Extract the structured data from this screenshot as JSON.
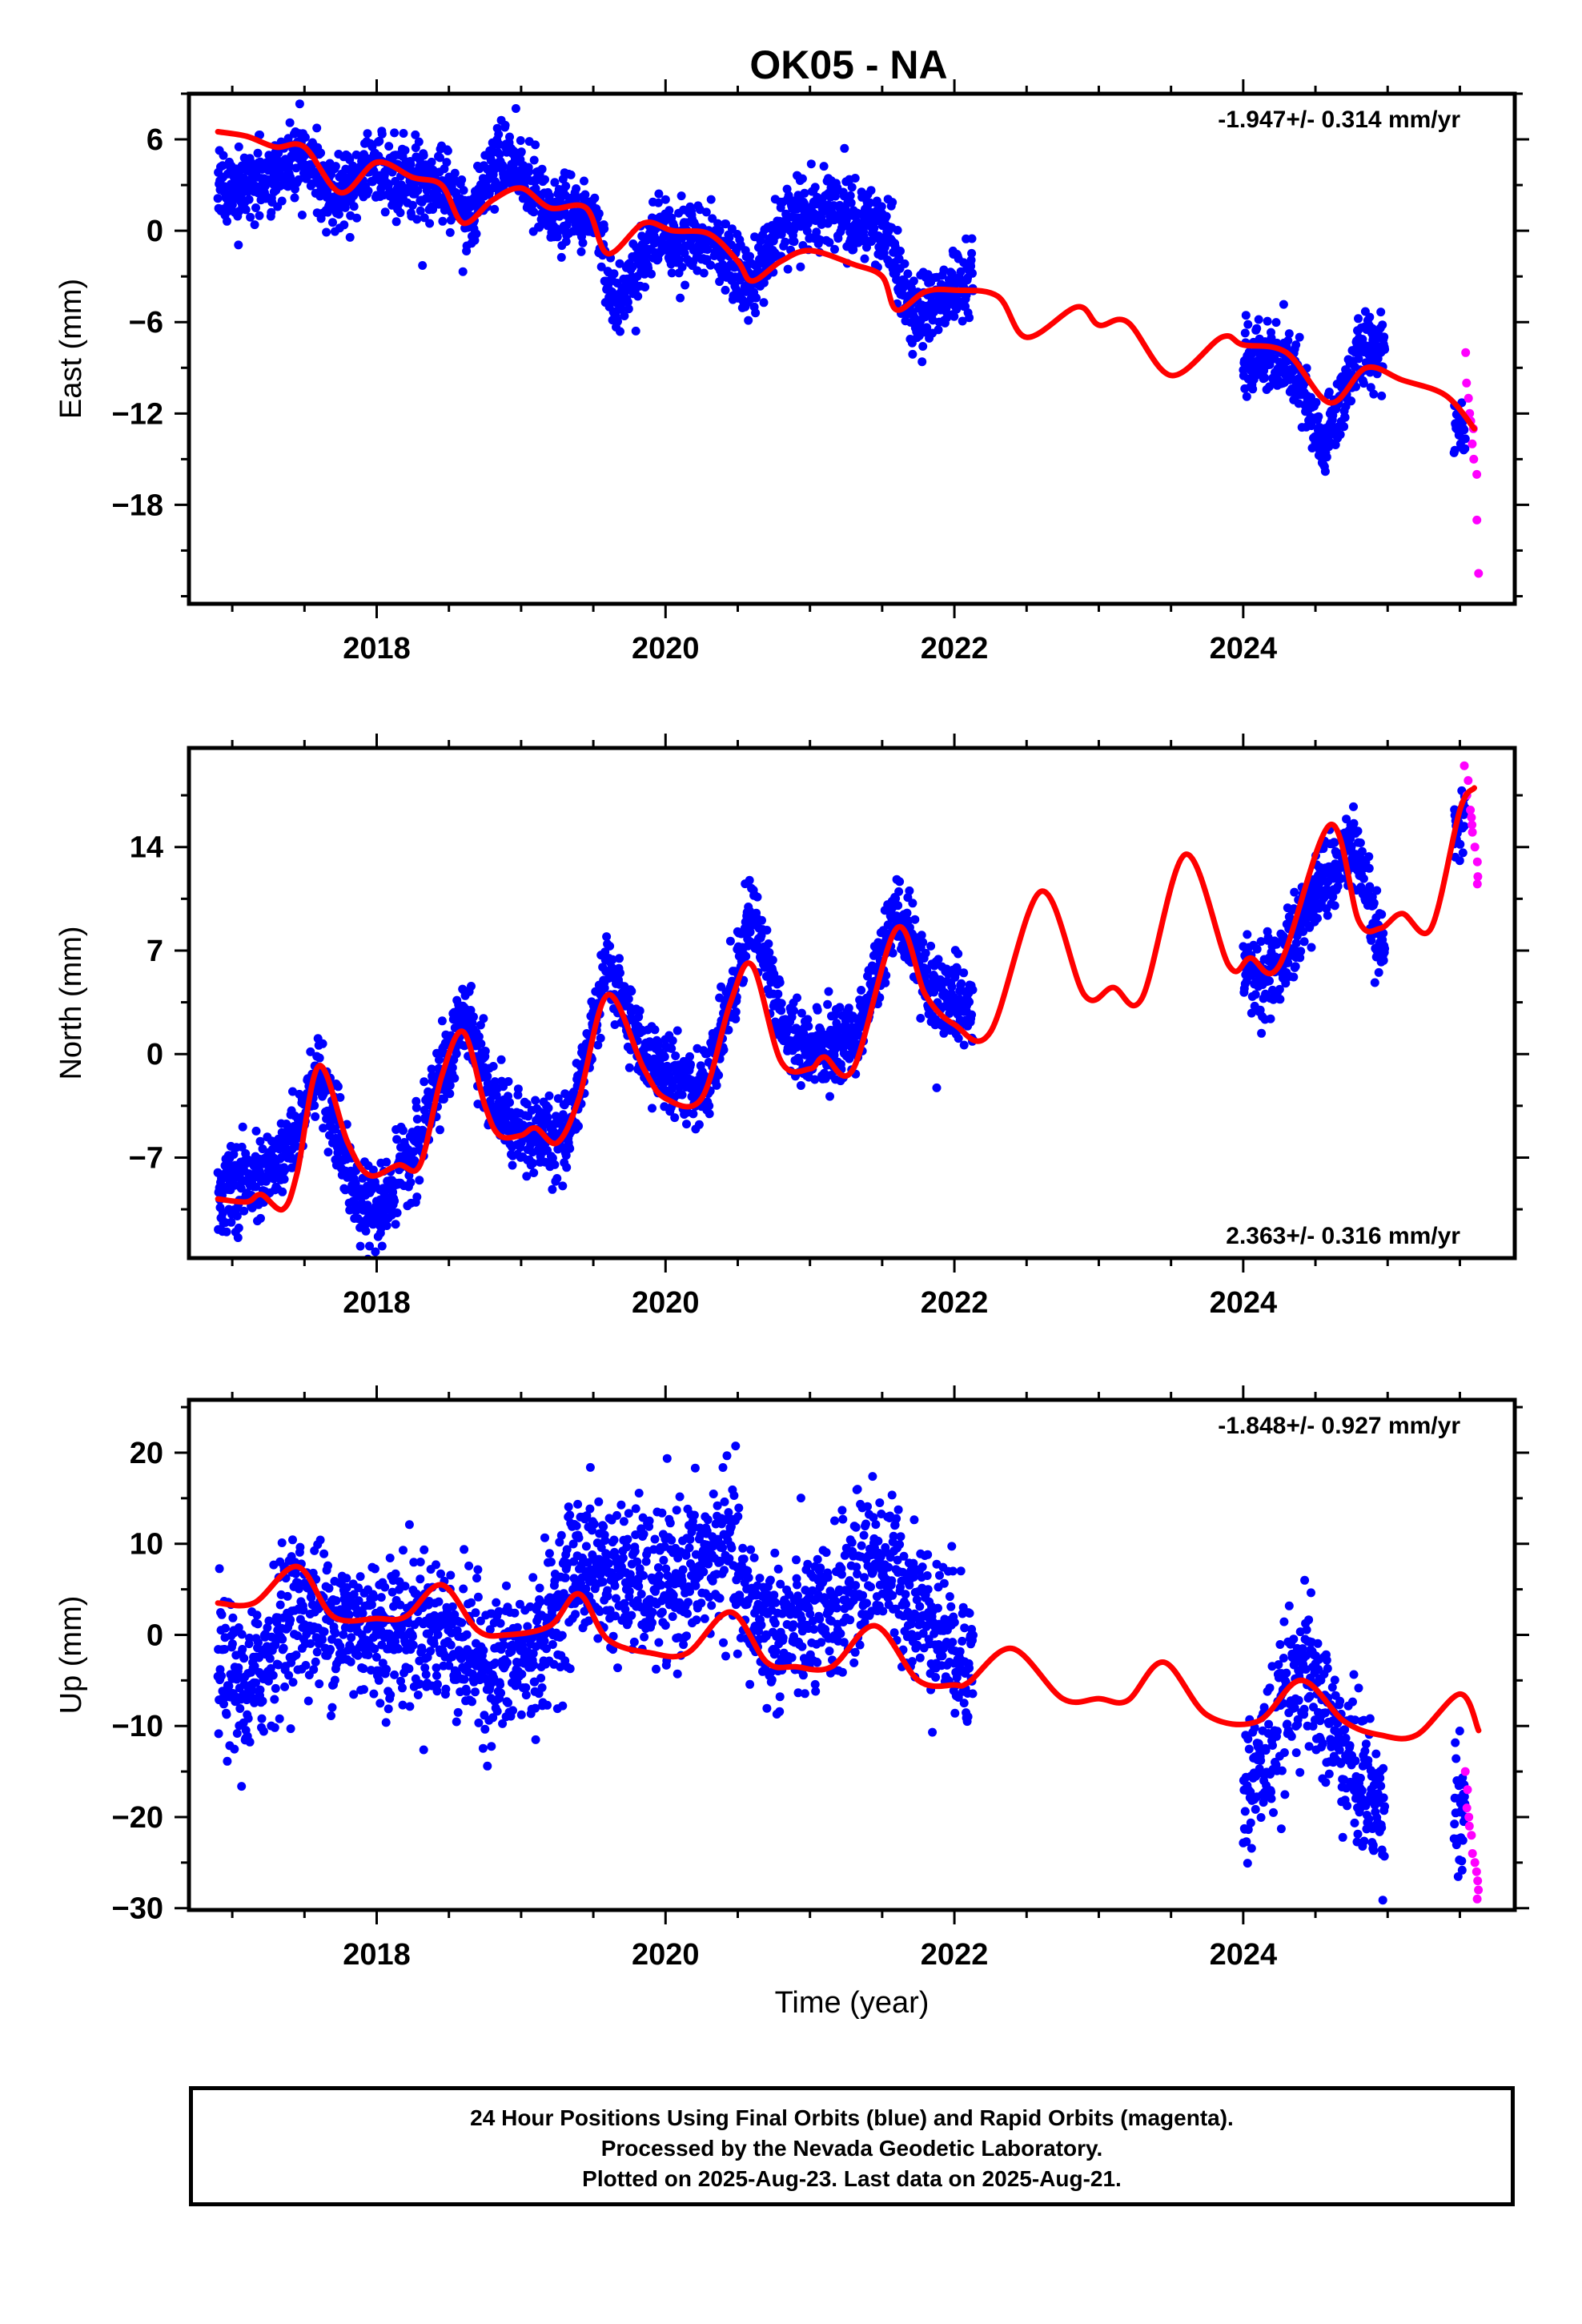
{
  "title": "OK05 - NA",
  "colors": {
    "final": "#0000ff",
    "rapid": "#ff00ff",
    "model": "#ff0000",
    "axis": "#000000"
  },
  "footer": {
    "line1": "24 Hour Positions Using Final Orbits (blue) and Rapid Orbits (magenta).",
    "line2": "Processed by the Nevada Geodetic Laboratory.",
    "line3": "Plotted on 2025-Aug-23. Last data on 2025-Aug-21."
  },
  "chart_data": [
    {
      "type": "scatter",
      "panel": "east",
      "ylabel": "East (mm)",
      "xlabel": "",
      "xlim": [
        2016.7,
        2025.88
      ],
      "ylim": [
        -24.5,
        9
      ],
      "x_ticks": [
        2018,
        2020,
        2022,
        2024
      ],
      "y_ticks": [
        6,
        0,
        -6,
        -12,
        -18
      ],
      "rate_label": "-1.947+/- 0.314 mm/yr",
      "rate_position": "top-right",
      "data_ranges": [
        [
          2016.9,
          2022.13
        ],
        [
          2024.0,
          2024.98
        ],
        [
          2025.46,
          2025.63
        ]
      ],
      "rapid_range": [
        2025.54,
        2025.63
      ],
      "rapid_values": [
        -8,
        -10,
        -11,
        -12,
        -12.5,
        -13,
        -14,
        -15,
        -16,
        -19,
        -22.5
      ],
      "model_curve": {
        "x": [
          2016.9,
          2017.1,
          2017.3,
          2017.5,
          2017.75,
          2018.0,
          2018.25,
          2018.45,
          2018.6,
          2018.8,
          2019.0,
          2019.2,
          2019.45,
          2019.6,
          2019.85,
          2020.05,
          2020.3,
          2020.5,
          2020.6,
          2020.8,
          2021.0,
          2021.3,
          2021.5,
          2021.6,
          2021.8,
          2022.0,
          2022.3,
          2022.5,
          2022.85,
          2023.0,
          2023.2,
          2023.5,
          2023.85,
          2024.0,
          2024.3,
          2024.6,
          2024.85,
          2025.1,
          2025.4,
          2025.6
        ],
        "y": [
          6.5,
          6.2,
          5.5,
          5.5,
          2.5,
          4.5,
          3.5,
          3.0,
          0.5,
          2.0,
          2.8,
          1.5,
          1.5,
          -1.5,
          0.5,
          0.0,
          -0.2,
          -2.0,
          -3.3,
          -2.0,
          -1.3,
          -2.2,
          -3.0,
          -5.2,
          -4.0,
          -3.9,
          -4.3,
          -7.0,
          -5.0,
          -6.2,
          -6.0,
          -9.5,
          -7.0,
          -7.5,
          -8.0,
          -11.3,
          -9.0,
          -9.8,
          -10.8,
          -13.0
        ]
      },
      "seasonal": {
        "anchors": [
          2016.9,
          2017.5,
          2017.7,
          2018.0,
          2018.5,
          2018.65,
          2018.85,
          2019.2,
          2019.5,
          2019.65,
          2019.9,
          2020.3,
          2020.5,
          2020.6,
          2020.8,
          2021.1,
          2021.4,
          2021.55,
          2021.7,
          2022.13,
          2024.0,
          2024.35,
          2024.55,
          2024.8,
          2024.98,
          2025.46,
          2025.63
        ],
        "values": [
          2.5,
          4.5,
          2.5,
          4.0,
          3.0,
          0.5,
          5.0,
          1.5,
          1.0,
          -5.0,
          -0.5,
          -0.5,
          -2.5,
          -3.5,
          0.5,
          1.5,
          0.5,
          -0.5,
          -6.0,
          -3.0,
          -8.0,
          -9.0,
          -14.5,
          -8.0,
          -7.5,
          -12.5,
          -13.0
        ]
      },
      "scatter_sigma": 1.2
    },
    {
      "type": "scatter",
      "panel": "north",
      "ylabel": "North (mm)",
      "xlabel": "",
      "xlim": [
        2016.7,
        2025.88
      ],
      "ylim": [
        -13.8,
        20.7
      ],
      "x_ticks": [
        2018,
        2020,
        2022,
        2024
      ],
      "y_ticks": [
        14,
        7,
        0,
        -7
      ],
      "rate_label": "2.363+/- 0.316 mm/yr",
      "rate_position": "bottom-right",
      "data_ranges": [
        [
          2016.9,
          2022.13
        ],
        [
          2024.0,
          2024.98
        ],
        [
          2025.46,
          2025.63
        ]
      ],
      "rapid_range": [
        2025.54,
        2025.63
      ],
      "rapid_values": [
        19.5,
        18.5,
        17.5,
        16.5,
        16,
        15.5,
        15,
        14,
        13,
        12,
        11.5
      ],
      "model_curve": {
        "x": [
          2016.9,
          2017.1,
          2017.2,
          2017.35,
          2017.45,
          2017.6,
          2017.8,
          2017.95,
          2018.15,
          2018.3,
          2018.45,
          2018.6,
          2018.75,
          2018.85,
          2019.0,
          2019.1,
          2019.25,
          2019.4,
          2019.6,
          2019.85,
          2020.0,
          2020.25,
          2020.45,
          2020.6,
          2020.8,
          2021.0,
          2021.1,
          2021.3,
          2021.6,
          2021.8,
          2022.0,
          2022.25,
          2022.6,
          2022.9,
          2023.1,
          2023.3,
          2023.6,
          2023.9,
          2024.05,
          2024.25,
          2024.6,
          2024.8,
          2024.95,
          2025.1,
          2025.3,
          2025.5,
          2025.6
        ],
        "y": [
          -9.8,
          -10.0,
          -9.5,
          -10.5,
          -8.0,
          -0.8,
          -6.0,
          -8.2,
          -7.5,
          -7.5,
          -1.5,
          1.5,
          -3.5,
          -5.5,
          -5.5,
          -5.0,
          -6.0,
          -3.0,
          4.0,
          -1.0,
          -3.0,
          -3.0,
          3.5,
          6.0,
          -0.5,
          -1.0,
          -0.2,
          -1.0,
          8.5,
          4.0,
          2.0,
          1.5,
          11.0,
          4.0,
          4.5,
          3.8,
          13.5,
          6.0,
          6.5,
          6.0,
          15.5,
          9.0,
          8.5,
          9.5,
          8.5,
          16.5,
          18.0
        ]
      },
      "seasonal": {
        "anchors": [
          2016.9,
          2017.3,
          2017.6,
          2017.8,
          2018.0,
          2018.3,
          2018.6,
          2018.8,
          2019.0,
          2019.3,
          2019.6,
          2019.8,
          2020.0,
          2020.3,
          2020.6,
          2020.8,
          2021.0,
          2021.3,
          2021.6,
          2021.85,
          2022.13,
          2024.0,
          2024.2,
          2024.5,
          2024.75,
          2024.98,
          2025.46,
          2025.63
        ],
        "values": [
          -9.5,
          -8.0,
          -1.5,
          -8.0,
          -11.0,
          -6.0,
          3.0,
          -3.0,
          -5.5,
          -6.0,
          6.0,
          1.0,
          -1.5,
          -2.0,
          10.0,
          2.0,
          0.0,
          1.0,
          9.5,
          4.0,
          3.5,
          5.5,
          5.0,
          11.0,
          14.0,
          6.5,
          15.5,
          17.5
        ],
        "notes": "seasonal anchors shaped to the plotted point cloud"
      },
      "scatter_sigma": 1.3
    },
    {
      "type": "scatter",
      "panel": "up",
      "ylabel": "Up (mm)",
      "xlabel": "Time (year)",
      "xlim": [
        2016.7,
        2025.88
      ],
      "ylim": [
        -30.2,
        25.8
      ],
      "x_ticks": [
        2018,
        2020,
        2022,
        2024
      ],
      "y_ticks": [
        20,
        10,
        0,
        -10,
        -20,
        -30
      ],
      "rate_label": "-1.848+/- 0.927 mm/yr",
      "rate_position": "top-right",
      "data_ranges": [
        [
          2016.9,
          2022.13
        ],
        [
          2024.0,
          2024.98
        ],
        [
          2025.46,
          2025.63
        ]
      ],
      "rapid_range": [
        2025.54,
        2025.63
      ],
      "rapid_values": [
        -15,
        -17,
        -19,
        -20,
        -21,
        -22,
        -24,
        -25,
        -26,
        -27,
        -28,
        -29
      ],
      "model_curve": {
        "x": [
          2016.9,
          2017.15,
          2017.45,
          2017.7,
          2018.0,
          2018.2,
          2018.45,
          2018.7,
          2018.9,
          2019.2,
          2019.4,
          2019.6,
          2019.9,
          2020.15,
          2020.45,
          2020.7,
          2020.9,
          2021.15,
          2021.45,
          2021.75,
          2022.0,
          2022.1,
          2022.4,
          2022.75,
          2023.0,
          2023.2,
          2023.45,
          2023.75,
          2024.1,
          2024.4,
          2024.7,
          2024.95,
          2025.2,
          2025.5,
          2025.63
        ],
        "y": [
          3.5,
          3.5,
          7.5,
          2.0,
          1.8,
          2.0,
          5.5,
          0.5,
          0.0,
          1.0,
          4.5,
          -0.5,
          -2.0,
          -2.0,
          2.5,
          -3.0,
          -3.5,
          -3.5,
          1.0,
          -5.0,
          -5.5,
          -5.2,
          -1.5,
          -7.0,
          -7.0,
          -7.2,
          -3.0,
          -8.8,
          -9.5,
          -5.0,
          -9.5,
          -11.0,
          -11.0,
          -6.5,
          -10.5
        ]
      },
      "seasonal": {
        "anchors": [
          2016.9,
          2017.1,
          2017.4,
          2017.7,
          2018.0,
          2018.4,
          2018.8,
          2019.1,
          2019.4,
          2019.7,
          2020.0,
          2020.3,
          2020.45,
          2020.55,
          2020.8,
          2021.1,
          2021.45,
          2021.7,
          2022.13,
          2024.0,
          2024.2,
          2024.4,
          2024.7,
          2024.98,
          2025.46,
          2025.63
        ],
        "values": [
          -3.0,
          -7.0,
          3.0,
          1.5,
          0.5,
          1.0,
          -4.0,
          -2.0,
          8.0,
          6.0,
          5.0,
          8.0,
          10.0,
          3.0,
          0.0,
          1.5,
          9.0,
          4.0,
          -3.0,
          -18.0,
          -12.0,
          -3.0,
          -13.0,
          -20.0,
          -18.0,
          -22.0
        ]
      },
      "scatter_sigma": 4.0
    }
  ]
}
